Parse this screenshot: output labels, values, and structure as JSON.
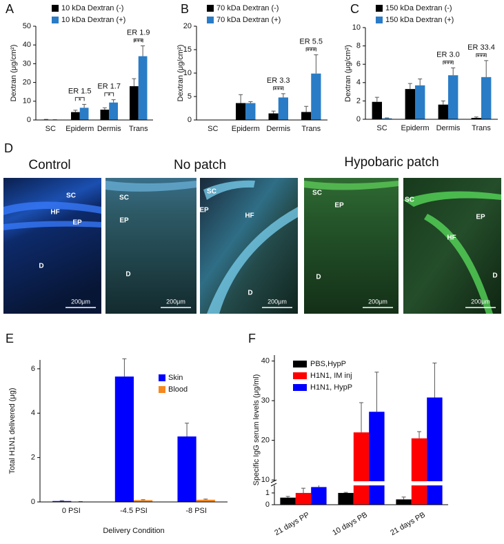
{
  "chart_data": [
    {
      "type": "bar",
      "panel": "A",
      "ylabel": "Dextran (μg/cm²)",
      "categories": [
        "SC",
        "Epiderm",
        "Dermis",
        "Trans"
      ],
      "series": [
        {
          "name": "10 kDa Dextran (-)",
          "color": "#000000",
          "values": [
            0.2,
            4.2,
            5.5,
            18
          ],
          "errors": [
            0.1,
            1,
            1,
            4
          ]
        },
        {
          "name": "10 kDa Dextran (+)",
          "color": "#2a7cc6",
          "values": [
            0.1,
            6.5,
            9.3,
            34
          ],
          "errors": [
            0.05,
            1.8,
            1.5,
            5.5
          ]
        }
      ],
      "annotations": [
        null,
        {
          "text": "ER 1.5",
          "significance": "*"
        },
        {
          "text": "ER 1.7",
          "significance": "*"
        },
        {
          "text": "ER 1.9",
          "significance": "***"
        }
      ],
      "ylim": [
        0,
        50
      ],
      "yticks": [
        0,
        10,
        20,
        30,
        40,
        50
      ]
    },
    {
      "type": "bar",
      "panel": "B",
      "ylabel": "Dextran (μg/cm²)",
      "categories": [
        "SC",
        "Epiderm",
        "Dermis",
        "Trans"
      ],
      "series": [
        {
          "name": "70 kDa Dextran (-)",
          "color": "#000000",
          "values": [
            0,
            3.6,
            1.4,
            1.7
          ],
          "errors": [
            0,
            1.8,
            0.5,
            1.2
          ]
        },
        {
          "name": "70 kDa Dextran (+)",
          "color": "#2a7cc6",
          "values": [
            0,
            3.6,
            4.8,
            9.9
          ],
          "errors": [
            0,
            0.3,
            0.8,
            4
          ]
        }
      ],
      "annotations": [
        null,
        null,
        {
          "text": "ER 3.3",
          "significance": "***"
        },
        {
          "text": "ER 5.5",
          "significance": "***"
        }
      ],
      "ylim": [
        0,
        20
      ],
      "yticks": [
        0,
        5,
        10,
        15,
        20
      ]
    },
    {
      "type": "bar",
      "panel": "C",
      "ylabel": "Dextran (μg/cm²)",
      "categories": [
        "SC",
        "Epiderm",
        "Dermis",
        "Trans"
      ],
      "series": [
        {
          "name": "150 kDa Dextran (-)",
          "color": "#000000",
          "values": [
            1.9,
            3.3,
            1.6,
            0.15
          ],
          "errors": [
            0.5,
            0.6,
            0.4,
            0.1
          ]
        },
        {
          "name": "150 kDa Dextran (+)",
          "color": "#2a7cc6",
          "values": [
            0.1,
            3.7,
            4.8,
            4.6
          ],
          "errors": [
            0.05,
            0.7,
            0.8,
            1.8
          ]
        }
      ],
      "annotations": [
        null,
        null,
        {
          "text": "ER 3.0",
          "significance": "***"
        },
        {
          "text": "ER 33.4",
          "significance": "***"
        }
      ],
      "ylim": [
        0,
        10
      ],
      "yticks": [
        0,
        2,
        4,
        6,
        8,
        10
      ]
    },
    {
      "type": "bar",
      "panel": "E",
      "ylabel": "Total H1N1 delivered (μg)",
      "xlabel": "Delivery Condition",
      "categories": [
        "0 PSI",
        "-4.5 PSI",
        "-8 PSI"
      ],
      "series": [
        {
          "name": "Skin",
          "color": "#0000ff",
          "values": [
            0.04,
            5.65,
            2.95
          ],
          "errors": [
            0.02,
            0.8,
            0.6
          ]
        },
        {
          "name": "Blood",
          "color": "#f5891f",
          "values": [
            0.01,
            0.08,
            0.1
          ],
          "errors": [
            0.005,
            0.02,
            0.03
          ]
        }
      ],
      "ylim": [
        0,
        6.4
      ],
      "yticks": [
        0,
        2,
        4,
        6
      ]
    },
    {
      "type": "bar",
      "panel": "F",
      "ylabel": "Specific IgG serum levels (μg/ml)",
      "categories": [
        "21 days PP",
        "10 days PB",
        "21 days PB"
      ],
      "series": [
        {
          "name": "PBS,HypP",
          "color": "#000000",
          "values": [
            0.6,
            1.0,
            0.45
          ],
          "errors": [
            0.1,
            0.05,
            0.2
          ]
        },
        {
          "name": "H1N1, IM inj",
          "color": "#ff0000",
          "values": [
            1.0,
            22,
            20.5
          ],
          "errors": [
            0.4,
            7.5,
            1.7
          ]
        },
        {
          "name": "H1N1, HypP",
          "color": "#0000ff",
          "values": [
            1.5,
            27.2,
            30.8
          ],
          "errors": [
            0.2,
            10,
            8.7
          ]
        }
      ],
      "ylim": [
        0,
        41.5
      ],
      "ybreak": [
        1.7,
        9.5
      ],
      "yticks": [
        0,
        1,
        10,
        20,
        30,
        40
      ]
    }
  ],
  "panel_d": {
    "letter": "D",
    "headings": [
      "Control",
      "No patch",
      "Hypobaric patch"
    ],
    "images": [
      {
        "labels": [
          "SC",
          "HF",
          "EP",
          "D"
        ],
        "scale": "200μm"
      },
      {
        "labels": [
          "SC",
          "EP",
          "D"
        ],
        "scale": "200μm"
      },
      {
        "labels": [
          "SC",
          "EP",
          "HF",
          "D"
        ],
        "scale": "200μm"
      },
      {
        "labels": [
          "SC",
          "EP",
          "D"
        ],
        "scale": "200μm"
      },
      {
        "labels": [
          "SC",
          "EP",
          "HF",
          "D"
        ],
        "scale": "200μm"
      }
    ]
  }
}
